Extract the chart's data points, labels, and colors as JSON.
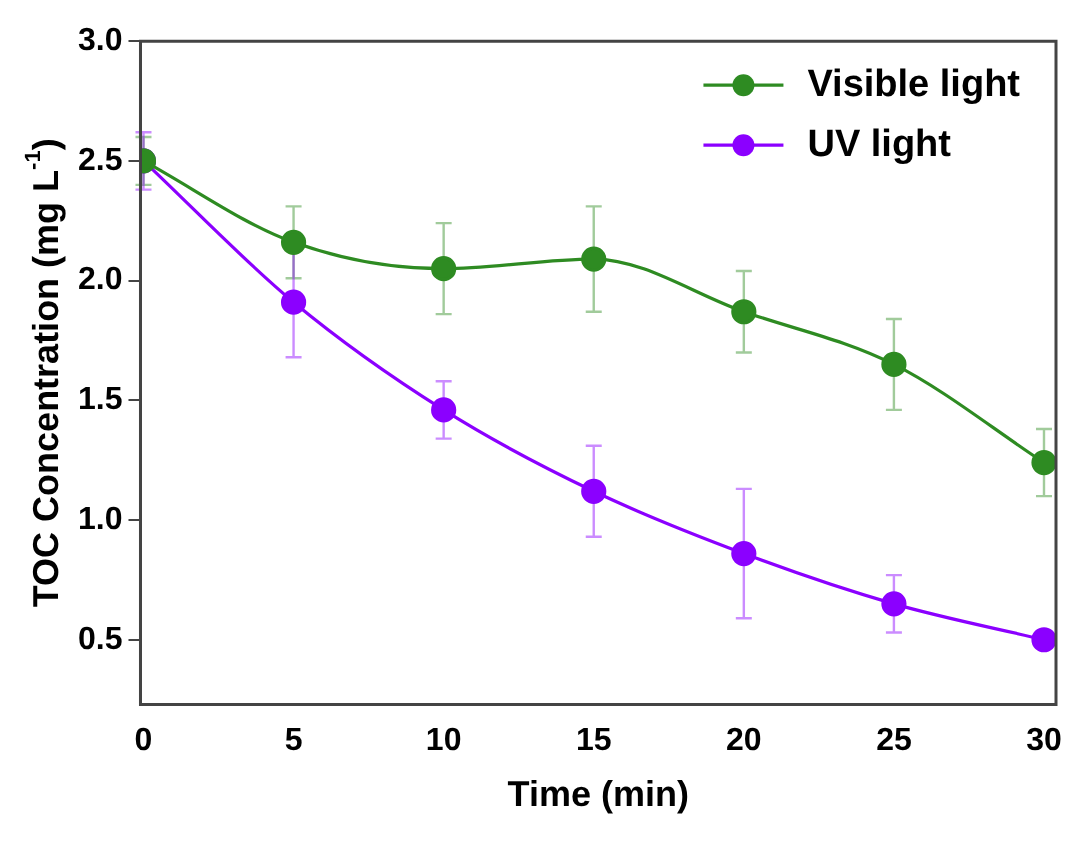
{
  "chart_data": {
    "type": "line",
    "xlabel": "Time (min)",
    "ylabel": "TOC Concentration (mg L$^{-1}$)",
    "x": [
      0,
      5,
      10,
      15,
      20,
      25,
      30
    ],
    "series": [
      {
        "name": "Visible light",
        "color": "#2e8b22",
        "values": [
          2.5,
          2.16,
          2.05,
          2.09,
          1.87,
          1.65,
          1.24
        ],
        "errors": [
          0.1,
          0.15,
          0.19,
          0.22,
          0.17,
          0.19,
          0.14
        ]
      },
      {
        "name": "UV light",
        "color": "#8b00ff",
        "values": [
          2.5,
          1.91,
          1.46,
          1.12,
          0.86,
          0.65,
          0.5
        ],
        "errors": [
          0.12,
          0.23,
          0.12,
          0.19,
          0.27,
          0.12,
          null
        ]
      }
    ],
    "xlim": [
      -0.1,
      30.4
    ],
    "xticks": [
      0,
      5,
      10,
      15,
      20,
      25,
      30
    ],
    "ylim": [
      0.23,
      3.0
    ],
    "yticks": [
      0.5,
      {
        "value": 1,
        "label": "1.0"
      },
      1.5,
      {
        "value": 2,
        "label": "2.0"
      },
      2.5,
      {
        "value": 3,
        "label": "3.0"
      }
    ],
    "grid": false,
    "legend": "top right",
    "marker": "circle",
    "line_style": "solid"
  }
}
